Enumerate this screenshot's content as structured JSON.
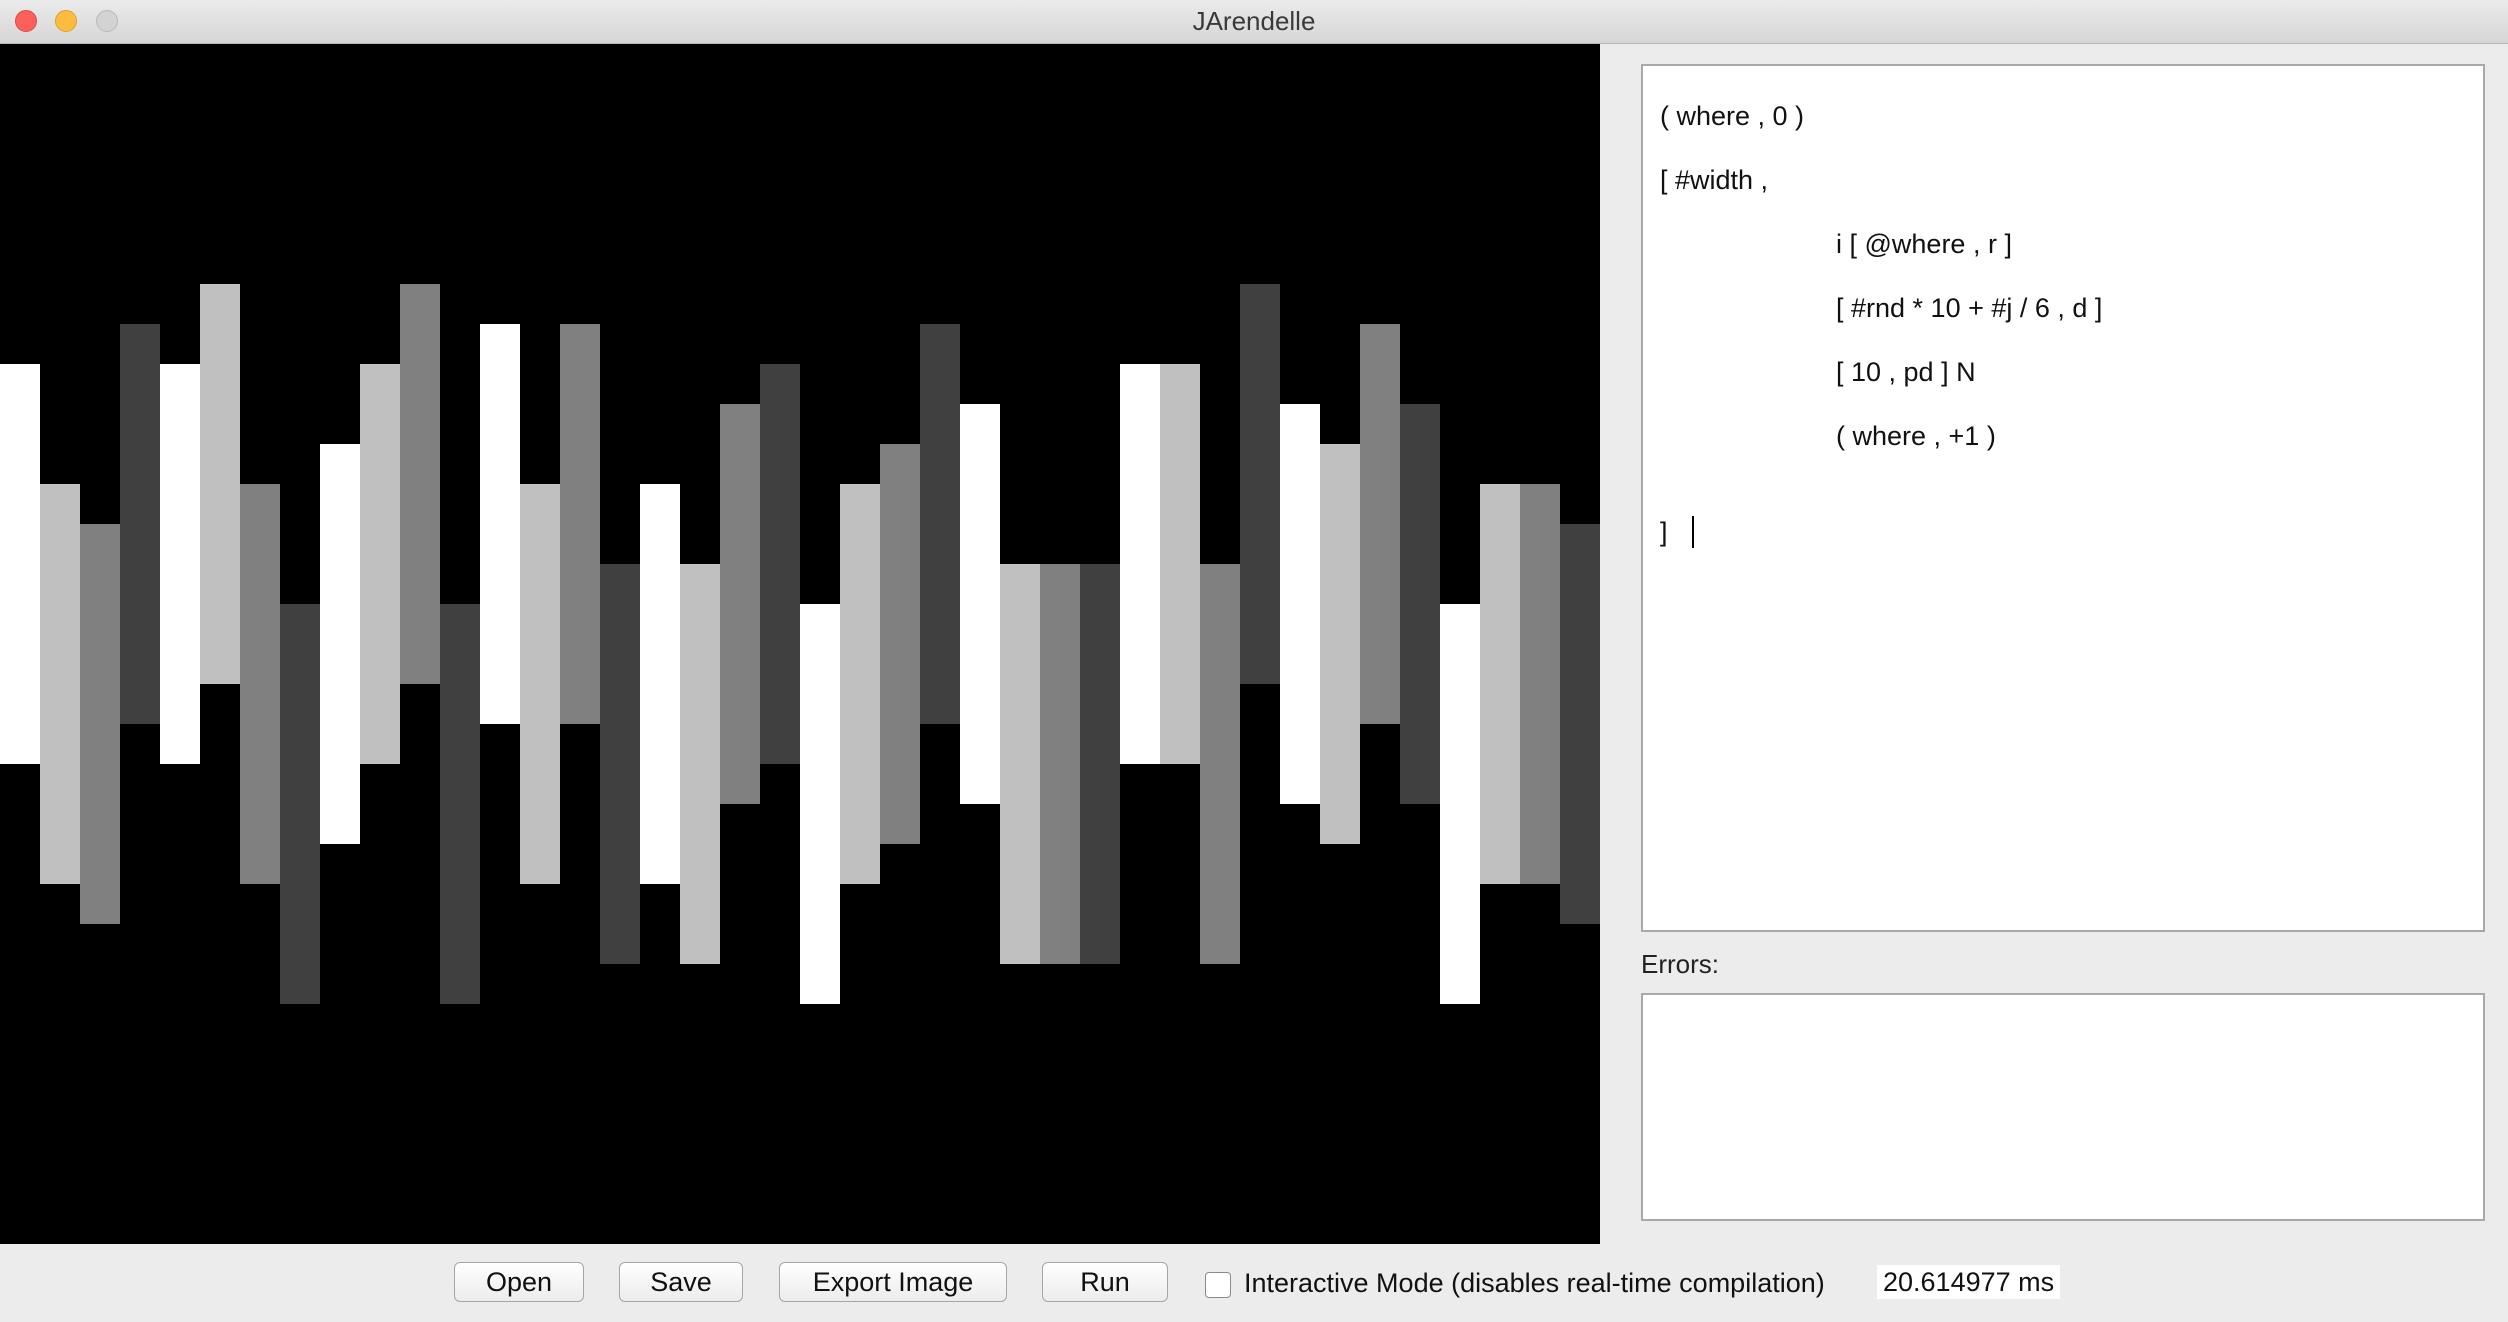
{
  "window": {
    "title": "JArendelle"
  },
  "canvas": {
    "colors": {
      "white": "#ffffff",
      "light": "#c0c0c0",
      "mid": "#808080",
      "dark": "#404040",
      "background": "#000000"
    }
  },
  "editor": {
    "lines": [
      "( where , 0 )",
      "[ #width ,",
      "i [ @where , r ]",
      "[ #rnd * 10 + #j / 6 , d ]",
      "[ 10 , pd ] N",
      "( where , +1 )",
      "]"
    ]
  },
  "errors": {
    "label": "Errors:",
    "value": ""
  },
  "toolbar": {
    "open_label": "Open",
    "save_label": "Save",
    "export_label": "Export Image",
    "run_label": "Run",
    "interactive_label": "Interactive Mode (disables real-time compilation)",
    "interactive_checked": false,
    "timing": "20.614977 ms"
  }
}
